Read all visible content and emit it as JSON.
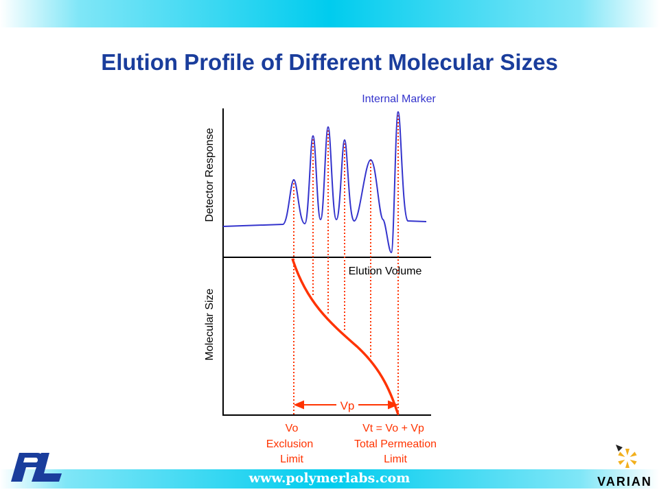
{
  "slide": {
    "title": "Elution Profile of Different Molecular Sizes",
    "footer_url": "www.polymerlabs.com",
    "logo_left": "PL",
    "logo_right": "VARIAN"
  },
  "diagram": {
    "top_axis_label": "Detector Response",
    "bottom_axis_label": "Molecular Size",
    "x_axis_label": "Elution Volume",
    "marker_label": "Internal Marker",
    "vp_label": "Vp",
    "vo_label": [
      "Vo",
      "Exclusion",
      "Limit"
    ],
    "vt_label": [
      "Vt = Vo + Vp",
      "Total Permeation",
      "Limit"
    ]
  },
  "colors": {
    "title": "#1a3d9c",
    "chromatogram": "#3333cc",
    "calibration": "#ff3300",
    "marker_text": "#3333cc",
    "band": "#00ccee"
  },
  "icons": {
    "left_logo": "pl-logo-icon",
    "right_logo": "varian-star-icon"
  }
}
